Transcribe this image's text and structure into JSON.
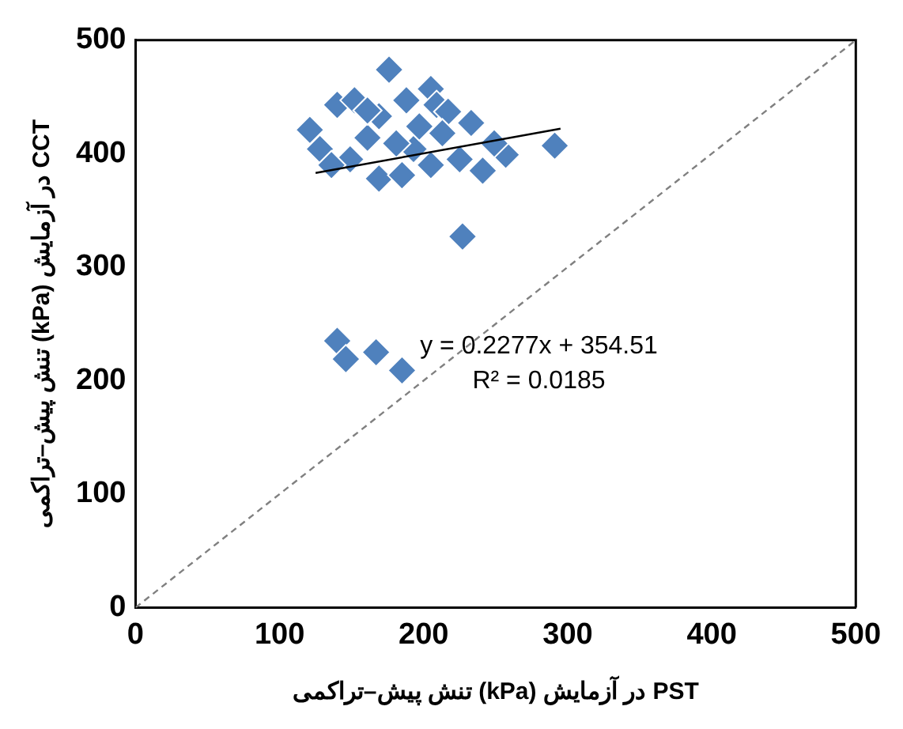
{
  "chart_data": {
    "type": "scatter",
    "xlabel": "تنش پیش–تراکمی (kPa) در آزمایش PST",
    "ylabel": "تنش پیش–تراکمی (kPa) در آزمایش CCT",
    "xlim": [
      0,
      500
    ],
    "ylim": [
      0,
      500
    ],
    "xticks": [
      0,
      100,
      200,
      300,
      400,
      500
    ],
    "yticks": [
      0,
      100,
      200,
      300,
      400,
      500
    ],
    "grid": false,
    "legend": false,
    "annotations": [
      "y = 0.2277x + 354.51",
      "R² = 0.0185"
    ],
    "series": [
      {
        "marker": "diamond",
        "color": "#4f81bd",
        "x": [
          121,
          128,
          140,
          152,
          176,
          169,
          188,
          205,
          209,
          217,
          161,
          149,
          169,
          185,
          205,
          193,
          181,
          225,
          233,
          241,
          257,
          249,
          213,
          136,
          197,
          161,
          291,
          227,
          140,
          146,
          167,
          185
        ],
        "values": [
          421,
          404,
          443,
          447,
          474,
          433,
          447,
          457,
          443,
          437,
          414,
          395,
          378,
          381,
          390,
          404,
          409,
          395,
          427,
          385,
          399,
          409,
          418,
          390,
          424,
          438,
          407,
          327,
          235,
          219,
          225,
          209
        ]
      },
      {
        "type": "line",
        "marker": "none",
        "line_style": "solid",
        "color": "#000000",
        "x": [
          125,
          295
        ],
        "values": [
          383,
          422
        ]
      },
      {
        "type": "line",
        "marker": "none",
        "line_style": "dashed",
        "color": "#808080",
        "x": [
          0,
          500
        ],
        "values": [
          0,
          500
        ]
      }
    ]
  }
}
